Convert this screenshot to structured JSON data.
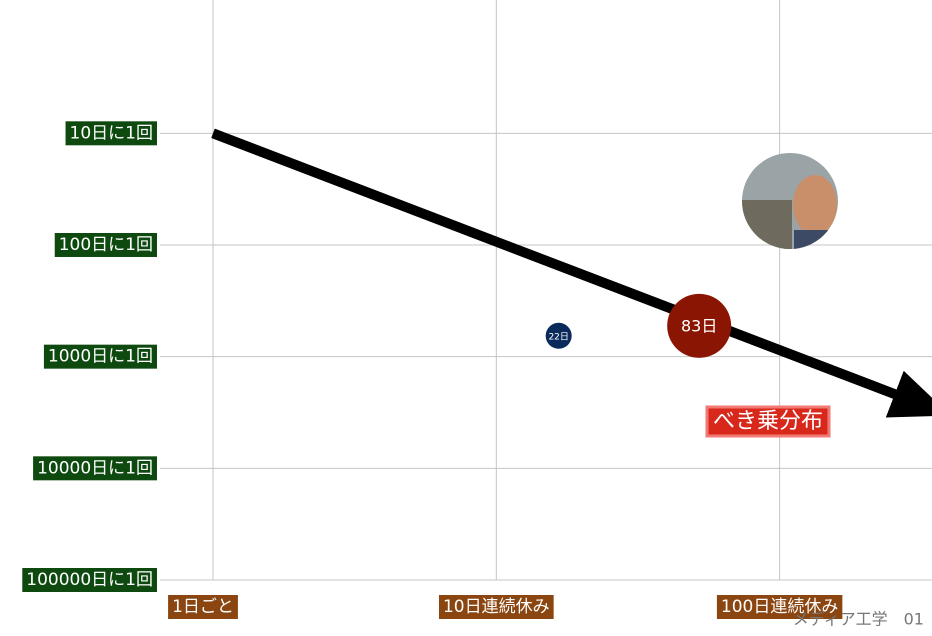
{
  "chart_data": {
    "type": "scatter",
    "xscale": "log",
    "yscale": "log",
    "yreverse": true,
    "grid": true,
    "xlim": [
      0.65,
      345
    ],
    "ylim": [
      0.64,
      100000
    ],
    "xticks": [
      {
        "value": 1,
        "label": "1日ごと"
      },
      {
        "value": 10,
        "label": "10日連続休み"
      },
      {
        "value": 100,
        "label": "100日連続休み"
      }
    ],
    "yticks": [
      {
        "value": 10,
        "label": "10日に1回"
      },
      {
        "value": 100,
        "label": "100日に1回"
      },
      {
        "value": 1000,
        "label": "1000日に1回"
      },
      {
        "value": 10000,
        "label": "10000日に1回"
      },
      {
        "value": 100000,
        "label": "100000日に1回"
      }
    ],
    "points": [
      {
        "label": "22日",
        "x": 16.6,
        "y": 650,
        "color": "#0b2a5c"
      },
      {
        "label": "83日",
        "x": 52,
        "y": 530,
        "color": "#8a1503"
      }
    ],
    "trend": {
      "x": [
        1,
        320
      ],
      "y": [
        10,
        2700
      ],
      "color": "#000000"
    },
    "annotation": "べき乗分布",
    "footer": "メディア工学　01"
  }
}
